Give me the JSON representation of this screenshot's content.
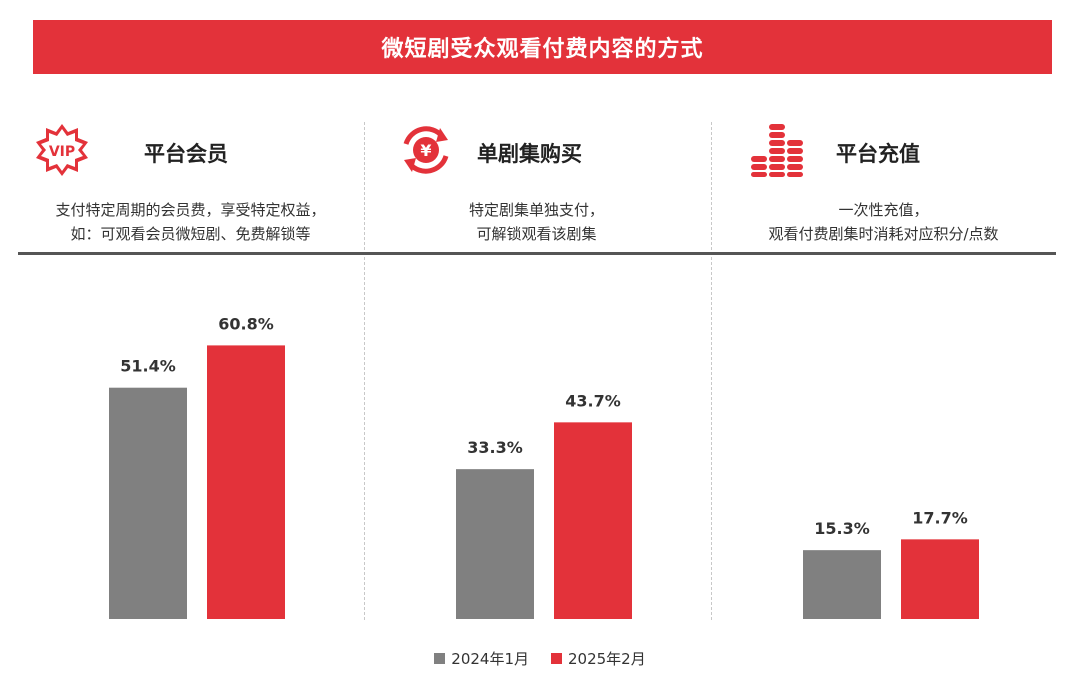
{
  "title": "微短剧受众观看付费内容的方式",
  "colors": {
    "accent": "#e3323a",
    "gray": "#808080",
    "divider": "#555555",
    "text": "#333333"
  },
  "panels": [
    {
      "name": "平台会员",
      "icon": "vip-badge-icon",
      "icon_text": "VIP",
      "desc": [
        "支付特定周期的会员费，享受特定权益，",
        "如：可观看会员微短剧、免费解锁等"
      ]
    },
    {
      "name": "单剧集购买",
      "icon": "yuan-exchange-icon",
      "icon_text": "¥",
      "desc": [
        "特定剧集单独支付，",
        "可解锁观看该剧集"
      ]
    },
    {
      "name": "平台充值",
      "icon": "coin-stacks-icon",
      "desc": [
        "一次性充值，",
        "观看付费剧集时消耗对应积分/点数"
      ]
    }
  ],
  "chart_data": {
    "type": "bar",
    "categories": [
      "平台会员",
      "单剧集购买",
      "平台充值"
    ],
    "series": [
      {
        "name": "2024年1月",
        "values": [
          51.4,
          33.3,
          15.3
        ],
        "labels": [
          "51.4%",
          "33.3%",
          "15.3%"
        ],
        "color": "#808080"
      },
      {
        "name": "2025年2月",
        "values": [
          60.8,
          43.7,
          17.7
        ],
        "labels": [
          "60.8%",
          "43.7%",
          "17.7%"
        ],
        "color": "#e3323a"
      }
    ],
    "ylim": [
      0,
      70
    ],
    "grid": false,
    "legend_position": "bottom"
  }
}
